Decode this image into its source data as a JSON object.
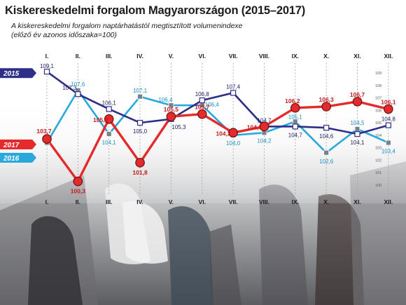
{
  "title": "Kiskereskedelmi forgalom Magyarországon (2015–2017)",
  "subtitle_line1": "A kiskereskedelmi forgalom naptárhatástól megtisztított volumenindexe",
  "subtitle_line2": "(előző év azonos időszaka=100)",
  "colors": {
    "s2015": "#2e2f88",
    "s2016": "#29a8dd",
    "s2017": "#e52a2c",
    "marker2016": "#7b8188",
    "grid": "#9aa0a8"
  },
  "chart_data": {
    "type": "line",
    "categories": [
      "I.",
      "II.",
      "III.",
      "IV.",
      "V.",
      "VI.",
      "VII.",
      "VIII.",
      "IX.",
      "X.",
      "XI.",
      "XII."
    ],
    "ylim": [
      100,
      109
    ],
    "yticks": [
      "109",
      "108",
      "107",
      "106",
      "105",
      "104",
      "103",
      "102",
      "101",
      "100"
    ],
    "series": [
      {
        "name": "2015",
        "values": [
          109.1,
          107.3,
          106.1,
          105.0,
          105.3,
          106.8,
          107.4,
          104.7,
          104.7,
          104.6,
          104.1,
          104.8
        ]
      },
      {
        "name": "2016",
        "values": [
          103.4,
          107.6,
          104.1,
          107.1,
          106.4,
          106.4,
          104.0,
          104.2,
          105.1,
          102.6,
          104.5,
          103.4
        ]
      },
      {
        "name": "2017",
        "values": [
          103.7,
          100.3,
          105.3,
          101.8,
          105.5,
          105.7,
          104.2,
          104.7,
          106.2,
          106.3,
          106.7,
          106.1
        ]
      }
    ],
    "labels": {
      "2015": [
        "109,1",
        "107,3",
        "106,1",
        "105,0",
        "105,3",
        "106,8",
        "107,4",
        "104,7",
        "104,7",
        "104,6",
        "104,1",
        "104,8"
      ],
      "2016": [
        "",
        "107,6",
        "104,1",
        "107,1",
        "106,4",
        "106,4",
        "104,0",
        "104,2",
        "105,1",
        "102,6",
        "104,5",
        "103,4"
      ],
      "2017": [
        "103,7",
        "100,3",
        "105,3",
        "101,8",
        "105,5",
        "105,7",
        "104,2",
        "104,7",
        "106,2",
        "106,3",
        "106,7",
        "106,1"
      ]
    }
  }
}
